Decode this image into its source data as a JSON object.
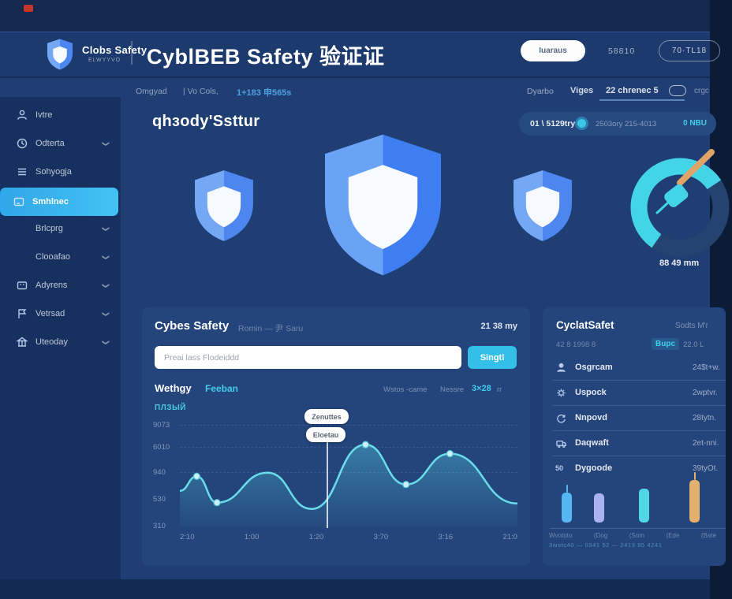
{
  "brand": {
    "logo_title": "Clobs Safety",
    "logo_subtitle": "ELWYYVO"
  },
  "header": {
    "app_title": "CyblBEB Safety 验证证",
    "white_button": "Iuaraus",
    "link": "58810",
    "outline_button": "70·TL18"
  },
  "subbar": {
    "crumb1": "Omgyad",
    "crumb2": "|  Vo Cols,",
    "crumb3": "1+183 申565s",
    "right_link1": "Dyarbo",
    "right_link2": "Viges",
    "right_link3": "22 chrenec 5",
    "right_more": "crgc"
  },
  "sidebar": {
    "items": [
      {
        "label": "Ivtre",
        "icon": "user-icon"
      },
      {
        "label": "Odterta",
        "icon": "clock-icon",
        "chevron": true
      },
      {
        "label": "Sohyogja",
        "icon": "list-icon"
      },
      {
        "label": "Smhlnec",
        "icon": "card-icon",
        "active": true
      },
      {
        "label": "Brlcprg",
        "chevron": true,
        "sub": true
      },
      {
        "label": "Clooafao",
        "chevron": true,
        "sub": true
      },
      {
        "label": "Adyrens",
        "icon": "grid-icon",
        "chevron": true
      },
      {
        "label": "Vetrsad",
        "icon": "flag-icon",
        "chevron": true
      },
      {
        "label": "Uteoday",
        "icon": "bank-icon",
        "chevron": true
      }
    ]
  },
  "overview": {
    "heading": "qhзody'Ssttur",
    "status_left": "01 \\ 5129try",
    "status_mid": "2503ory 215-4013",
    "status_right": "0 NBU",
    "gauge_label": "88 49 mm"
  },
  "card": {
    "title": "Cybes Safety",
    "subtitle": "Romin — 尹 Saru",
    "time": "21 38 my",
    "search_placeholder": "Preai lass Flodeiddd",
    "search_button": "Singtl",
    "tab1": "Wethgy",
    "tab2": "Feeban",
    "legend1": "Wstos -came",
    "legend2": "Nessre",
    "legend3": "3×28",
    "legend4": "rr",
    "tooltip1": "Zenuttes",
    "tooltip2": "Eloetau",
    "chart_data": {
      "type": "area",
      "y_axis_label": "ПЛЗЫЙ",
      "y_ticks": [
        "9073",
        "6010",
        "940",
        "530",
        "310"
      ],
      "x_ticks": [
        "2:10",
        "1:00",
        "1:20",
        "3:70",
        "3:16",
        "21:0"
      ],
      "points": [
        {
          "x": 0,
          "v": 35
        },
        {
          "x": 5,
          "v": 51,
          "dot": true
        },
        {
          "x": 11,
          "v": 22,
          "dot": true
        },
        {
          "x": 26,
          "v": 55
        },
        {
          "x": 39,
          "v": 15
        },
        {
          "x": 55,
          "v": 86,
          "dot": true
        },
        {
          "x": 67,
          "v": 42,
          "dot": true
        },
        {
          "x": 80,
          "v": 76,
          "dot": true
        },
        {
          "x": 100,
          "v": 21
        }
      ],
      "tooltip_x_pct": 43.5,
      "line_color": "#68dcea",
      "fill_color": "#56d6e6"
    }
  },
  "panel": {
    "title": "CyclatSafet",
    "title_right": "Sodts M'r",
    "sub_left": "42 8 1998 8",
    "sub_chip": "Bupc",
    "sub_right": "22.0 L",
    "rows": [
      {
        "icon": "person-icon",
        "label": "Osgrcam",
        "value": "24$t+w."
      },
      {
        "icon": "gear-icon",
        "label": "Uspock",
        "value": "2wptvr."
      },
      {
        "icon": "refresh-icon",
        "label": "Nnpovd",
        "value": "28tytn."
      },
      {
        "icon": "truck-icon",
        "label": "Daqwaft",
        "value": "2et-nni."
      },
      {
        "icon": "badge-50-icon",
        "label": "Dygoode",
        "value": "39tyOt."
      }
    ],
    "chart_data": {
      "type": "bar",
      "bars": [
        {
          "x": 16,
          "h": 38,
          "color": "#56b6f2",
          "wick": true
        },
        {
          "x": 57,
          "h": 37,
          "color": "#aab2ef",
          "wick": false
        },
        {
          "x": 114,
          "h": 43,
          "color": "#50d6e6",
          "wick": false
        },
        {
          "x": 178,
          "h": 54,
          "color": "#e4b06e",
          "wick": true
        }
      ],
      "labels": [
        "Wvototo",
        "(Dog",
        "(Som",
        "(Ede",
        "(Bate"
      ],
      "sublabel": "3wotc40 — 0341 52 — 2413 95 4241"
    }
  }
}
